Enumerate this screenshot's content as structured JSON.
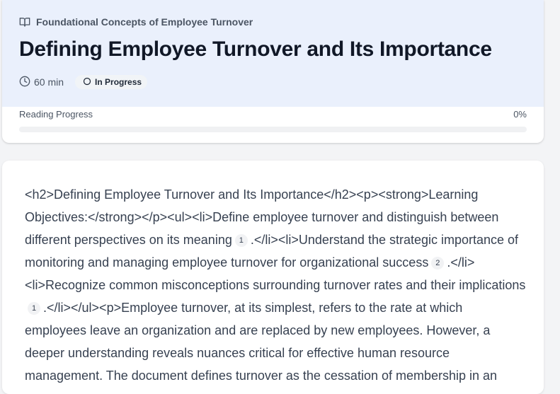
{
  "header": {
    "module_title": "Foundational Concepts of Employee Turnover",
    "page_title": "Defining Employee Turnover and Its Importance",
    "duration": "60 min",
    "status": "In Progress"
  },
  "progress": {
    "label": "Reading Progress",
    "value_text": "0%",
    "fraction": 0
  },
  "content": {
    "segments": [
      "<h2>Defining Employee Turnover and Its Importance</h2><p><strong>Learning Objectives:</strong></p><ul><li>Define employee turnover and distinguish between different perspectives on its meaning",
      "1",
      ".</li><li>Understand the strategic importance of monitoring and managing employee turnover for organizational success",
      "2",
      ".</li><li>Recognize common misconceptions surrounding turnover rates and their implications",
      "1",
      ".</li></ul><p>Employee turnover, at its simplest, refers to the rate at which employees leave an organization and are replaced by new employees. However, a deeper understanding reveals nuances critical for effective human resource management. The document defines turnover as the cessation of membership in an"
    ]
  },
  "icons": {
    "module": "open-book-icon",
    "duration": "clock-icon",
    "status": "circle-icon"
  },
  "colors": {
    "header_bg": "#eaf0fc",
    "progress_fill": "#3b82f6"
  }
}
